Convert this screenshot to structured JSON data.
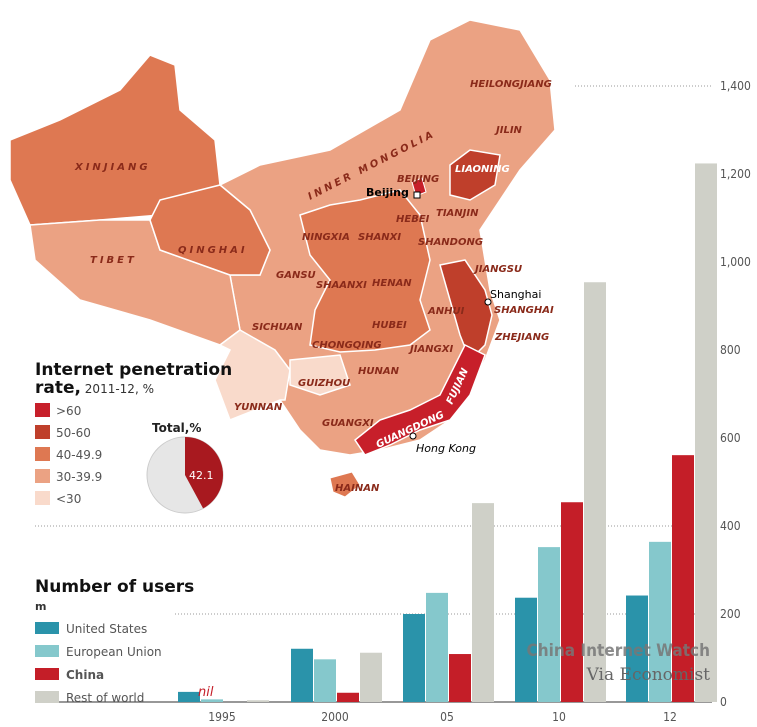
{
  "map": {
    "title_line1": "Internet penetration",
    "title_line2_bold": "rate,",
    "title_line2_rest": " 2011-12, %",
    "legend": [
      {
        "label": ">60",
        "color": "#c71f2a"
      },
      {
        "label": "50-60",
        "color": "#bf3f2b"
      },
      {
        "label": "40-49.9",
        "color": "#de7852"
      },
      {
        "label": "30-39.9",
        "color": "#eba283"
      },
      {
        "label": "<30",
        "color": "#f9dacb"
      }
    ],
    "total_label": "Total,%",
    "total_value": 42.1,
    "total_value_text": "42.1",
    "provinces": {
      "xinjiang": "XINJIANG",
      "tibet": "TIBET",
      "qinghai": "QINGHAI",
      "gansu": "GANSU",
      "inner_mongolia": "INNER MONGOLIA",
      "heilongjiang": "HEILONGJIANG",
      "jilin": "JILIN",
      "liaoning": "LIAONING",
      "beijing": "BEIJING",
      "tianjin": "TIANJIN",
      "hebei": "HEBEI",
      "ningxia": "NINGXIA",
      "shanxi": "SHANXI",
      "shandong": "SHANDONG",
      "shaanxi": "SHAANXI",
      "henan": "HENAN",
      "jiangsu": "JIANGSU",
      "shanghai": "SHANGHAI",
      "anhui": "ANHUI",
      "sichuan": "SICHUAN",
      "hubei": "HUBEI",
      "zhejiang": "ZHEJIANG",
      "chongqing": "CHONGQING",
      "jiangxi": "JIANGXI",
      "guizhou": "GUIZHOU",
      "hunan": "HUNAN",
      "fujian": "FUJIAN",
      "yunnan": "YUNNAN",
      "guangxi": "GUANGXI",
      "guangdong": "GUANGDONG",
      "hainan": "HAINAN"
    },
    "cities": {
      "beijing": "Beijing",
      "shanghai": "Shanghai",
      "hong_kong": "Hong Kong"
    }
  },
  "chart_data": {
    "type": "bar",
    "title": "Number of users",
    "ylabel": "m",
    "categories": [
      "1995",
      "2000",
      "05",
      "10",
      "12"
    ],
    "ylim": [
      0,
      1400
    ],
    "yticks": [
      "0",
      "200",
      "400",
      "600",
      "800",
      "1,000",
      "1,200",
      "1,400"
    ],
    "grid": true,
    "legend_placement": "left",
    "annotation": "nil",
    "series": [
      {
        "name": "United States",
        "color": "#2a93aa",
        "values": [
          23,
          121,
          200,
          237,
          242
        ]
      },
      {
        "name": "European Union",
        "color": "#85c8cc",
        "values": [
          6,
          97,
          248,
          352,
          364
        ]
      },
      {
        "name": "China",
        "color": "#c41e28",
        "values": [
          0,
          21,
          109,
          454,
          561
        ]
      },
      {
        "name": "Rest of world",
        "color": "#cfd0c8",
        "values": [
          4,
          112,
          452,
          954,
          1224
        ]
      }
    ]
  },
  "watermark": {
    "line1": "China Internet Watch",
    "line2": "Via Economist"
  }
}
